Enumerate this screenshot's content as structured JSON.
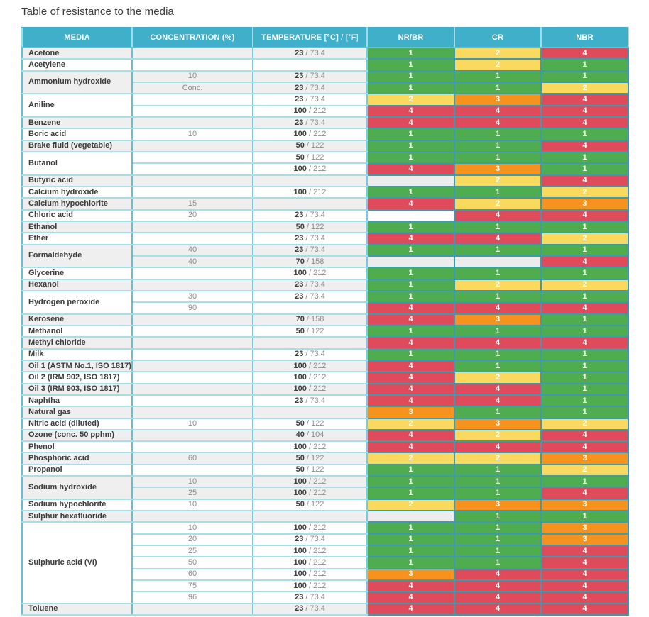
{
  "title": "Table of resistance to the media",
  "colors": {
    "header_bg": "#3fafca",
    "rating_1_green": "#4fac4f",
    "rating_2_yellow": "#f9d95e",
    "rating_3_orange": "#f6921e",
    "rating_4_red": "#e04b5b",
    "stripe_gray": "#efefef",
    "border_light": "#a8dee9",
    "border_mid": "#5ec3d7",
    "border_rating": "#3e9bae"
  },
  "table": {
    "header": {
      "media": "MEDIA",
      "concentration": "CONCENTRATION (%)",
      "temperature_bold": "TEMPERATURE [°C]",
      "temperature_light": " / [°F]",
      "nr_br": "NR/BR",
      "cr": "CR",
      "nbr": "NBR"
    },
    "rating_colors": {
      "1": "#4fac4f",
      "2": "#f9d95e",
      "3": "#f6921e",
      "4": "#e04b5b"
    },
    "groups": [
      {
        "media": "Acetone",
        "shade": "gray",
        "rows": [
          {
            "conc": "",
            "temp_c": "23",
            "temp_f": "73.4",
            "ratings": [
              "1",
              "2",
              "4"
            ]
          }
        ]
      },
      {
        "media": "Acetylene",
        "shade": "white",
        "rows": [
          {
            "conc": "",
            "temp_c": "",
            "temp_f": "",
            "ratings": [
              "1",
              "2",
              "1"
            ]
          }
        ]
      },
      {
        "media": "Ammonium hydroxide",
        "shade": "gray",
        "rows": [
          {
            "conc": "10",
            "temp_c": "23",
            "temp_f": "73.4",
            "ratings": [
              "1",
              "1",
              "1"
            ]
          },
          {
            "conc": "Conc.",
            "temp_c": "23",
            "temp_f": "73.4",
            "ratings": [
              "1",
              "1",
              "2"
            ]
          }
        ]
      },
      {
        "media": "Aniline",
        "shade": "white",
        "rows": [
          {
            "conc": "",
            "temp_c": "23",
            "temp_f": "73.4",
            "ratings": [
              "2",
              "3",
              "4"
            ]
          },
          {
            "conc": "",
            "temp_c": "100",
            "temp_f": "212",
            "ratings": [
              "4",
              "4",
              "4"
            ]
          }
        ]
      },
      {
        "media": "Benzene",
        "shade": "gray",
        "rows": [
          {
            "conc": "",
            "temp_c": "23",
            "temp_f": "73.4",
            "ratings": [
              "4",
              "4",
              "4"
            ]
          }
        ]
      },
      {
        "media": "Boric acid",
        "shade": "white",
        "rows": [
          {
            "conc": "10",
            "temp_c": "100",
            "temp_f": "212",
            "ratings": [
              "1",
              "1",
              "1"
            ]
          }
        ]
      },
      {
        "media": "Brake fluid (vegetable)",
        "shade": "gray",
        "rows": [
          {
            "conc": "",
            "temp_c": "50",
            "temp_f": "122",
            "ratings": [
              "1",
              "1",
              "4"
            ]
          }
        ]
      },
      {
        "media": "Butanol",
        "shade": "white",
        "rows": [
          {
            "conc": "",
            "temp_c": "50",
            "temp_f": "122",
            "ratings": [
              "1",
              "1",
              "1"
            ]
          },
          {
            "conc": "",
            "temp_c": "100",
            "temp_f": "212",
            "ratings": [
              "4",
              "3",
              "1"
            ]
          }
        ]
      },
      {
        "media": "Butyric acid",
        "shade": "gray",
        "rows": [
          {
            "conc": "",
            "temp_c": "",
            "temp_f": "",
            "ratings": [
              "",
              "2",
              "4"
            ]
          }
        ]
      },
      {
        "media": "Calcium hydroxide",
        "shade": "white",
        "rows": [
          {
            "conc": "",
            "temp_c": "100",
            "temp_f": "212",
            "ratings": [
              "1",
              "1",
              "2"
            ]
          }
        ]
      },
      {
        "media": "Calcium hypochlorite",
        "shade": "gray",
        "rows": [
          {
            "conc": "15",
            "temp_c": "",
            "temp_f": "",
            "ratings": [
              "4",
              "2",
              "3"
            ]
          }
        ]
      },
      {
        "media": "Chloric acid",
        "shade": "white",
        "rows": [
          {
            "conc": "20",
            "temp_c": "23",
            "temp_f": "73.4",
            "ratings": [
              "",
              "4",
              "4"
            ]
          }
        ]
      },
      {
        "media": "Ethanol",
        "shade": "gray",
        "rows": [
          {
            "conc": "",
            "temp_c": "50",
            "temp_f": "122",
            "ratings": [
              "1",
              "1",
              "1"
            ]
          }
        ]
      },
      {
        "media": "Ether",
        "shade": "white",
        "rows": [
          {
            "conc": "",
            "temp_c": "23",
            "temp_f": "73.4",
            "ratings": [
              "4",
              "4",
              "2"
            ]
          }
        ]
      },
      {
        "media": "Formaldehyde",
        "shade": "gray",
        "rows": [
          {
            "conc": "40",
            "temp_c": "23",
            "temp_f": "73.4",
            "ratings": [
              "1",
              "1",
              "1"
            ]
          },
          {
            "conc": "40",
            "temp_c": "70",
            "temp_f": "158",
            "ratings": [
              "",
              "",
              "4"
            ]
          }
        ]
      },
      {
        "media": "Glycerine",
        "shade": "white",
        "rows": [
          {
            "conc": "",
            "temp_c": "100",
            "temp_f": "212",
            "ratings": [
              "1",
              "1",
              "1"
            ]
          }
        ]
      },
      {
        "media": "Hexanol",
        "shade": "gray",
        "rows": [
          {
            "conc": "",
            "temp_c": "23",
            "temp_f": "73.4",
            "ratings": [
              "1",
              "2",
              "2"
            ]
          }
        ]
      },
      {
        "media": "Hydrogen peroxide",
        "shade": "white",
        "rows": [
          {
            "conc": "30",
            "temp_c": "23",
            "temp_f": "73.4",
            "ratings": [
              "1",
              "1",
              "1"
            ]
          },
          {
            "conc": "90",
            "temp_c": "",
            "temp_f": "",
            "ratings": [
              "4",
              "4",
              "4"
            ]
          }
        ]
      },
      {
        "media": "Kerosene",
        "shade": "gray",
        "rows": [
          {
            "conc": "",
            "temp_c": "70",
            "temp_f": "158",
            "ratings": [
              "4",
              "3",
              "1"
            ]
          }
        ]
      },
      {
        "media": "Methanol",
        "shade": "white",
        "rows": [
          {
            "conc": "",
            "temp_c": "50",
            "temp_f": "122",
            "ratings": [
              "1",
              "1",
              "1"
            ]
          }
        ]
      },
      {
        "media": "Methyl chloride",
        "shade": "gray",
        "rows": [
          {
            "conc": "",
            "temp_c": "",
            "temp_f": "",
            "ratings": [
              "4",
              "4",
              "4"
            ]
          }
        ]
      },
      {
        "media": "Milk",
        "shade": "white",
        "rows": [
          {
            "conc": "",
            "temp_c": "23",
            "temp_f": "73.4",
            "ratings": [
              "1",
              "1",
              "1"
            ]
          }
        ]
      },
      {
        "media": "Oil 1 (ASTM No.1, ISO 1817)",
        "shade": "gray",
        "rows": [
          {
            "conc": "",
            "temp_c": "100",
            "temp_f": "212",
            "ratings": [
              "4",
              "1",
              "1"
            ]
          }
        ]
      },
      {
        "media": "Oil 2 (IRM 902, ISO 1817)",
        "shade": "white",
        "rows": [
          {
            "conc": "",
            "temp_c": "100",
            "temp_f": "212",
            "ratings": [
              "4",
              "2",
              "1"
            ]
          }
        ]
      },
      {
        "media": "Oil 3 (IRM 903, ISO 1817)",
        "shade": "gray",
        "rows": [
          {
            "conc": "",
            "temp_c": "100",
            "temp_f": "212",
            "ratings": [
              "4",
              "4",
              "1"
            ]
          }
        ]
      },
      {
        "media": "Naphtha",
        "shade": "white",
        "rows": [
          {
            "conc": "",
            "temp_c": "23",
            "temp_f": "73.4",
            "ratings": [
              "4",
              "4",
              "1"
            ]
          }
        ]
      },
      {
        "media": "Natural gas",
        "shade": "gray",
        "rows": [
          {
            "conc": "",
            "temp_c": "",
            "temp_f": "",
            "ratings": [
              "3",
              "1",
              "1"
            ]
          }
        ]
      },
      {
        "media": "Nitric acid (diluted)",
        "shade": "white",
        "rows": [
          {
            "conc": "10",
            "temp_c": "50",
            "temp_f": "122",
            "ratings": [
              "2",
              "3",
              "2"
            ]
          }
        ]
      },
      {
        "media": "Ozone (conc. 50 pphm)",
        "shade": "gray",
        "rows": [
          {
            "conc": "",
            "temp_c": "40",
            "temp_f": "104",
            "ratings": [
              "4",
              "2",
              "4"
            ]
          }
        ]
      },
      {
        "media": "Phenol",
        "shade": "white",
        "rows": [
          {
            "conc": "",
            "temp_c": "100",
            "temp_f": "212",
            "ratings": [
              "4",
              "4",
              "4"
            ]
          }
        ]
      },
      {
        "media": "Phosphoric acid",
        "shade": "gray",
        "rows": [
          {
            "conc": "60",
            "temp_c": "50",
            "temp_f": "122",
            "ratings": [
              "2",
              "2",
              "3"
            ]
          }
        ]
      },
      {
        "media": "Propanol",
        "shade": "white",
        "rows": [
          {
            "conc": "",
            "temp_c": "50",
            "temp_f": "122",
            "ratings": [
              "1",
              "1",
              "2"
            ]
          }
        ]
      },
      {
        "media": "Sodium hydroxide",
        "shade": "gray",
        "rows": [
          {
            "conc": "10",
            "temp_c": "100",
            "temp_f": "212",
            "ratings": [
              "1",
              "1",
              "1"
            ]
          },
          {
            "conc": "25",
            "temp_c": "100",
            "temp_f": "212",
            "ratings": [
              "1",
              "1",
              "4"
            ]
          }
        ]
      },
      {
        "media": "Sodium hypochlorite",
        "shade": "white",
        "rows": [
          {
            "conc": "10",
            "temp_c": "50",
            "temp_f": "122",
            "ratings": [
              "2",
              "3",
              "3"
            ]
          }
        ]
      },
      {
        "media": "Sulphur hexafluoride",
        "shade": "gray",
        "rows": [
          {
            "conc": "",
            "temp_c": "",
            "temp_f": "",
            "ratings": [
              "",
              "1",
              "1"
            ]
          }
        ]
      },
      {
        "media": "Sulphuric acid (VI)",
        "shade": "white",
        "rows": [
          {
            "conc": "10",
            "temp_c": "100",
            "temp_f": "212",
            "ratings": [
              "1",
              "1",
              "3"
            ]
          },
          {
            "conc": "20",
            "temp_c": "23",
            "temp_f": "73.4",
            "ratings": [
              "1",
              "1",
              "3"
            ]
          },
          {
            "conc": "25",
            "temp_c": "100",
            "temp_f": "212",
            "ratings": [
              "1",
              "1",
              "4"
            ]
          },
          {
            "conc": "50",
            "temp_c": "100",
            "temp_f": "212",
            "ratings": [
              "1",
              "1",
              "4"
            ]
          },
          {
            "conc": "60",
            "temp_c": "100",
            "temp_f": "212",
            "ratings": [
              "3",
              "4",
              "4"
            ]
          },
          {
            "conc": "75",
            "temp_c": "100",
            "temp_f": "212",
            "ratings": [
              "4",
              "4",
              "4"
            ]
          },
          {
            "conc": "96",
            "temp_c": "23",
            "temp_f": "73.4",
            "ratings": [
              "4",
              "4",
              "4"
            ]
          }
        ]
      },
      {
        "media": "Toluene",
        "shade": "gray",
        "rows": [
          {
            "conc": "",
            "temp_c": "23",
            "temp_f": "73.4",
            "ratings": [
              "4",
              "4",
              "4"
            ]
          }
        ]
      }
    ]
  }
}
